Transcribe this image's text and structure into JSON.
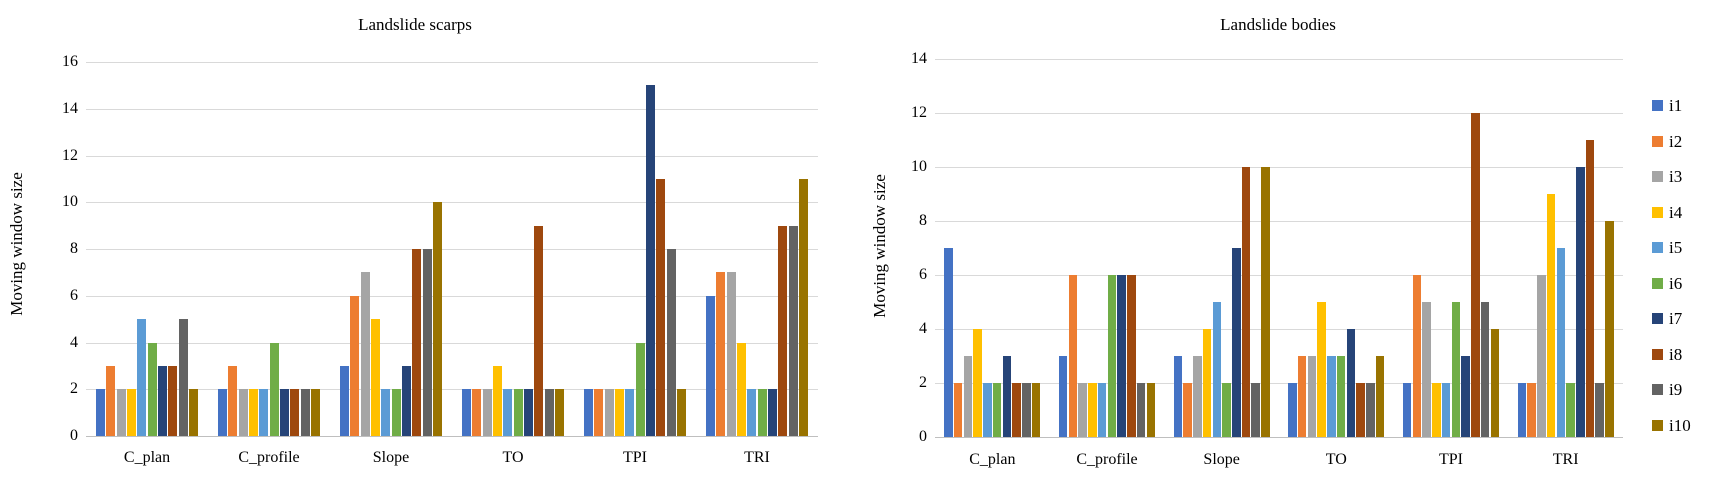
{
  "figure": {
    "background": "#FFFFFF"
  },
  "chart_data": [
    {
      "type": "bar",
      "title": "Landslide scarps",
      "ylabel": "Moving window size",
      "xlabel": "",
      "ylim": [
        0,
        16
      ],
      "ytick_step": 2,
      "grid": true,
      "legend_position": "right",
      "categories": [
        "C_plan",
        "C_profile",
        "Slope",
        "TO",
        "TPI",
        "TRI"
      ],
      "series": [
        {
          "name": "i1",
          "color": "#4472C4",
          "values": [
            2,
            2,
            3,
            2,
            2,
            6
          ]
        },
        {
          "name": "i2",
          "color": "#ED7D31",
          "values": [
            3,
            3,
            6,
            2,
            2,
            7
          ]
        },
        {
          "name": "i3",
          "color": "#A5A5A5",
          "values": [
            2,
            2,
            7,
            2,
            2,
            7
          ]
        },
        {
          "name": "i4",
          "color": "#FFC000",
          "values": [
            2,
            2,
            5,
            3,
            2,
            4
          ]
        },
        {
          "name": "i5",
          "color": "#5B9BD5",
          "values": [
            5,
            2,
            2,
            2,
            2,
            2
          ]
        },
        {
          "name": "i6",
          "color": "#70AD47",
          "values": [
            4,
            4,
            2,
            2,
            4,
            2
          ]
        },
        {
          "name": "i7",
          "color": "#264478",
          "values": [
            3,
            2,
            3,
            2,
            15,
            2
          ]
        },
        {
          "name": "i8",
          "color": "#9E480E",
          "values": [
            3,
            2,
            8,
            9,
            11,
            9
          ]
        },
        {
          "name": "i9",
          "color": "#636363",
          "values": [
            5,
            2,
            8,
            2,
            8,
            9
          ]
        },
        {
          "name": "i10",
          "color": "#997300",
          "values": [
            2,
            2,
            10,
            2,
            2,
            11
          ]
        }
      ]
    },
    {
      "type": "bar",
      "title": "Landslide bodies",
      "ylabel": "Moving window size",
      "xlabel": "",
      "ylim": [
        0,
        14
      ],
      "ytick_step": 2,
      "grid": true,
      "legend_position": "right",
      "categories": [
        "C_plan",
        "C_profile",
        "Slope",
        "TO",
        "TPI",
        "TRI"
      ],
      "series": [
        {
          "name": "i1",
          "color": "#4472C4",
          "values": [
            7,
            3,
            3,
            2,
            2,
            2
          ]
        },
        {
          "name": "i2",
          "color": "#ED7D31",
          "values": [
            2,
            6,
            2,
            3,
            6,
            2
          ]
        },
        {
          "name": "i3",
          "color": "#A5A5A5",
          "values": [
            3,
            2,
            3,
            3,
            5,
            6
          ]
        },
        {
          "name": "i4",
          "color": "#FFC000",
          "values": [
            4,
            2,
            4,
            5,
            2,
            9
          ]
        },
        {
          "name": "i5",
          "color": "#5B9BD5",
          "values": [
            2,
            2,
            5,
            3,
            2,
            7
          ]
        },
        {
          "name": "i6",
          "color": "#70AD47",
          "values": [
            2,
            6,
            2,
            3,
            5,
            2
          ]
        },
        {
          "name": "i7",
          "color": "#264478",
          "values": [
            3,
            6,
            7,
            4,
            3,
            10
          ]
        },
        {
          "name": "i8",
          "color": "#9E480E",
          "values": [
            2,
            6,
            10,
            2,
            12,
            11
          ]
        },
        {
          "name": "i9",
          "color": "#636363",
          "values": [
            2,
            2,
            2,
            2,
            5,
            2
          ]
        },
        {
          "name": "i10",
          "color": "#997300",
          "values": [
            2,
            2,
            10,
            3,
            4,
            8
          ]
        }
      ]
    }
  ],
  "legend": {
    "position": "right",
    "entries": [
      {
        "label": "i1",
        "color": "#4472C4"
      },
      {
        "label": "i2",
        "color": "#ED7D31"
      },
      {
        "label": "i3",
        "color": "#A5A5A5"
      },
      {
        "label": "i4",
        "color": "#FFC000"
      },
      {
        "label": "i5",
        "color": "#5B9BD5"
      },
      {
        "label": "i6",
        "color": "#70AD47"
      },
      {
        "label": "i7",
        "color": "#264478"
      },
      {
        "label": "i8",
        "color": "#9E480E"
      },
      {
        "label": "i9",
        "color": "#636363"
      },
      {
        "label": "i10",
        "color": "#997300"
      }
    ]
  },
  "style_colors": {
    "gridline": "#D9D9D9",
    "axis_line": "#BFBFBF",
    "text": "#000000"
  }
}
